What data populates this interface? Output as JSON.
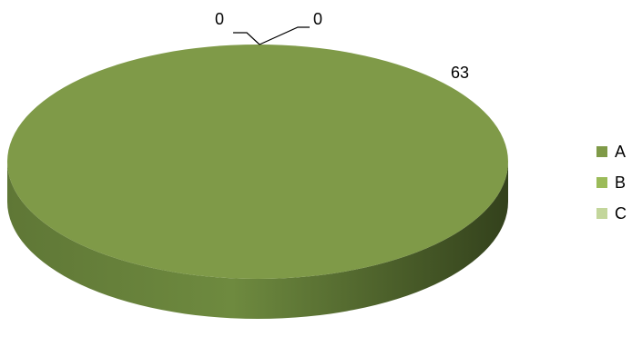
{
  "chart_data": {
    "type": "pie",
    "style": "3d",
    "categories": [
      "A",
      "B",
      "C"
    ],
    "values": [
      63,
      0,
      0
    ],
    "colors": [
      "#7f9a48",
      "#9bbb59",
      "#c3d69b"
    ],
    "data_labels": [
      "63",
      "0",
      "0"
    ],
    "legend": "right",
    "title": ""
  }
}
